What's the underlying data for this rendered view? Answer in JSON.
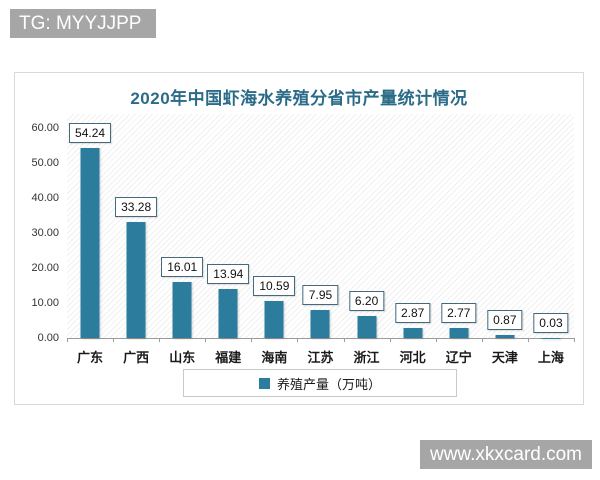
{
  "badges": {
    "tg": "TG: MYYJJPP",
    "site": "www.xkxcard.com"
  },
  "chart_data": {
    "type": "bar",
    "title": "2020年中国虾海水养殖分省市产量统计情况",
    "categories": [
      "广东",
      "广西",
      "山东",
      "福建",
      "海南",
      "江苏",
      "浙江",
      "河北",
      "辽宁",
      "天津",
      "上海"
    ],
    "values": [
      54.24,
      33.28,
      16.01,
      13.94,
      10.59,
      7.95,
      6.2,
      2.87,
      2.77,
      0.87,
      0.03
    ],
    "value_labels": [
      "54.24",
      "33.28",
      "16.01",
      "13.94",
      "10.59",
      "7.95",
      "6.20",
      "2.87",
      "2.77",
      "0.87",
      "0.03"
    ],
    "legend": [
      "养殖产量（万吨）"
    ],
    "legend_position": "bottom",
    "xlabel": "",
    "ylabel": "",
    "ylim": [
      0,
      60
    ],
    "ytick_step": 10,
    "ytick_labels": [
      "0.00",
      "10.00",
      "20.00",
      "30.00",
      "40.00",
      "50.00",
      "60.00"
    ],
    "grid": false,
    "bar_color": "#2b7c9d",
    "title_color": "#2a6b88",
    "label_box_border_color": "#44687d"
  }
}
